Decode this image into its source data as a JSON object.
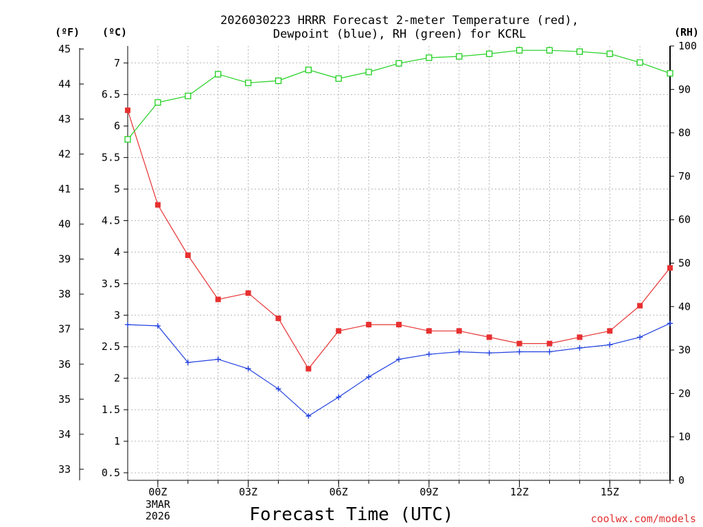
{
  "chart_data": {
    "type": "line",
    "title": [
      "2026030223 HRRR Forecast 2-meter Temperature (red),",
      "Dewpoint (blue), RH (green) for KCRL"
    ],
    "xlabel": "Forecast Time (UTC)",
    "credit": "coolwx.com/models",
    "x_hours": [
      -1,
      0,
      1,
      2,
      3,
      4,
      5,
      6,
      7,
      8,
      9,
      10,
      11,
      12,
      13,
      14,
      15,
      16,
      17
    ],
    "x_ticks": [
      {
        "hour": 0,
        "label": "00Z",
        "sub": [
          "3MAR",
          "2026"
        ]
      },
      {
        "hour": 3,
        "label": "03Z"
      },
      {
        "hour": 6,
        "label": "06Z"
      },
      {
        "hour": 9,
        "label": "09Z"
      },
      {
        "hour": 12,
        "label": "12Z"
      },
      {
        "hour": 15,
        "label": "15Z"
      }
    ],
    "xlim": [
      -1,
      17
    ],
    "celsius_axis": {
      "unit": "(ºC)",
      "ylim": [
        0.38,
        7.27
      ],
      "ticks": [
        "0.5",
        "1",
        "1.5",
        "2",
        "2.5",
        "3",
        "3.5",
        "4",
        "4.5",
        "5",
        "5.5",
        "6",
        "6.5",
        "7"
      ]
    },
    "fahrenheit_axis": {
      "unit": "(ºF)",
      "ticks": [
        "33",
        "34",
        "35",
        "36",
        "37",
        "38",
        "39",
        "40",
        "41",
        "42",
        "43",
        "44",
        "45"
      ]
    },
    "rh_axis": {
      "unit": "(RH)",
      "ylim": [
        0,
        100
      ],
      "ticks": [
        "0",
        "10",
        "20",
        "30",
        "40",
        "50",
        "60",
        "70",
        "80",
        "90",
        "100"
      ]
    },
    "series": [
      {
        "name": "Temperature",
        "axis": "celsius",
        "color": "#e83030",
        "marker": "filled-square",
        "values": [
          6.25,
          4.75,
          3.95,
          3.25,
          3.35,
          2.95,
          2.15,
          2.75,
          2.85,
          2.85,
          2.75,
          2.75,
          2.65,
          2.55,
          2.55,
          2.65,
          2.75,
          3.15,
          3.75
        ]
      },
      {
        "name": "Dewpoint",
        "axis": "celsius",
        "color": "#2040e0",
        "marker": "plus",
        "values": [
          2.85,
          2.83,
          2.25,
          2.3,
          2.15,
          1.83,
          1.4,
          1.7,
          2.02,
          2.3,
          2.38,
          2.42,
          2.4,
          2.42,
          2.42,
          2.48,
          2.53,
          2.65,
          2.87
        ]
      },
      {
        "name": "RH",
        "axis": "rh",
        "color": "#20d020",
        "marker": "open-square",
        "values": [
          78.5,
          87,
          88.5,
          93.5,
          91.5,
          92,
          94.5,
          92.5,
          94,
          96,
          97.3,
          97.6,
          98.2,
          99,
          99,
          98.7,
          98.2,
          96.2,
          93.7
        ]
      }
    ]
  }
}
